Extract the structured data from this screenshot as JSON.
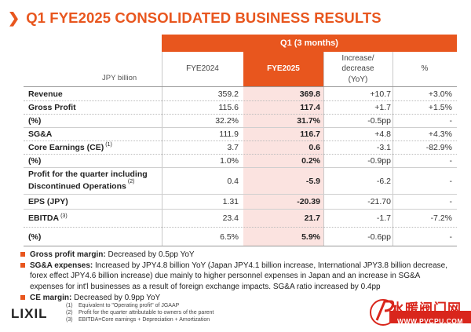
{
  "title": {
    "chevron": "❯",
    "text": "Q1 FYE2025 CONSOLIDATED BUSINESS RESULTS"
  },
  "table": {
    "band_label": "Q1 (3 months)",
    "unit": "JPY billion",
    "headers": {
      "col_2024": "FYE2024",
      "col_2025": "FYE2025",
      "col_yoy_line1": "Increase/",
      "col_yoy_line2": "decrease",
      "col_yoy_line3": "(YoY)",
      "col_pct": "%"
    },
    "rows": [
      {
        "label": "Revenue",
        "fy2024": "359.2",
        "fy2025": "369.8",
        "yoy": "+10.7",
        "pct": "+3.0%"
      },
      {
        "label": "Gross Profit",
        "fy2024": "115.6",
        "fy2025": "117.4",
        "yoy": "+1.7",
        "pct": "+1.5%"
      },
      {
        "label": "(%)",
        "fy2024": "32.2%",
        "fy2025": "31.7%",
        "yoy": "-0.5pp",
        "pct": "-"
      },
      {
        "label": "SG&A",
        "fy2024": "111.9",
        "fy2025": "116.7",
        "yoy": "+4.8",
        "pct": "+4.3%"
      },
      {
        "label": "Core Earnings (CE)",
        "sup": "(1)",
        "fy2024": "3.7",
        "fy2025": "0.6",
        "yoy": "-3.1",
        "pct": "-82.9%"
      },
      {
        "label": "(%)",
        "fy2024": "1.0%",
        "fy2025": "0.2%",
        "yoy": "-0.9pp",
        "pct": "-"
      },
      {
        "label_line1": "Profit for the quarter including",
        "label_line2": "Discontinued Operations",
        "sup": "(2)",
        "fy2024": "0.4",
        "fy2025": "-5.9",
        "yoy": "-6.2",
        "pct": "-"
      },
      {
        "label": "EPS (JPY)",
        "fy2024": "1.31",
        "fy2025": "-20.39",
        "yoy": "-21.70",
        "pct": "-"
      },
      {
        "label": "EBITDA",
        "sup": "(3)",
        "fy2024": "23.4",
        "fy2025": "21.7",
        "yoy": "-1.7",
        "pct": "-7.2%"
      },
      {
        "label": "(%)",
        "fy2024": "6.5%",
        "fy2025": "5.9%",
        "yoy": "-0.6pp",
        "pct": "-"
      }
    ]
  },
  "notes": [
    {
      "bold": "Gross profit margin:",
      "text": " Decreased by 0.5pp YoY"
    },
    {
      "bold": "SG&A expenses:",
      "text": " Increased by JPY4.8 billion YoY (Japan JPY4.1 billion increase, International JPY3.8 billion decrease, forex effect JPY4.6 billion increase) due mainly to higher personnel expenses in Japan and an increase in SG&A expenses for int'l businesses as a result of foreign exchange impacts. SG&A ratio increased by 0.4pp"
    },
    {
      "bold": "CE margin:",
      "text": " Decreased by 0.9pp YoY"
    }
  ],
  "footnotes": [
    {
      "num": "(1)",
      "text": "Equivalent to \"Operating profit\" of JGAAP"
    },
    {
      "num": "(2)",
      "text": "Profit for the quarter attributable to owners of the parent"
    },
    {
      "num": "(3)",
      "text": "EBITDA=Core earnings + Depreciation + Amortization"
    }
  ],
  "logo": "LIXIL",
  "watermark": {
    "text": "水暖阀门网",
    "url": "WWW.PVCPU.COM"
  },
  "colors": {
    "accent": "#e8561e",
    "highlight": "#fbe3e0",
    "watermark": "#d9261c"
  }
}
